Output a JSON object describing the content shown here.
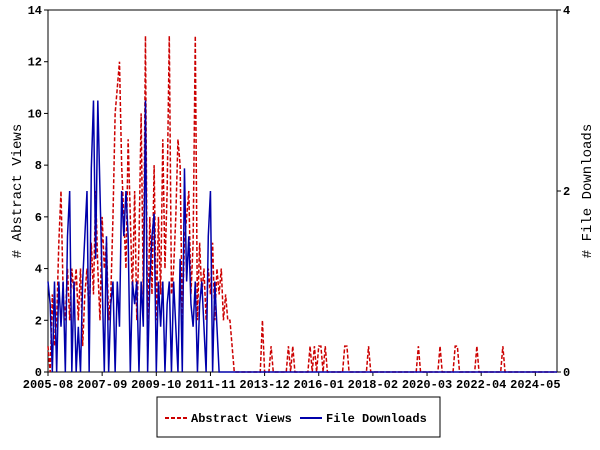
{
  "chart_data": {
    "type": "line",
    "ylabel": "# Abstract Views",
    "y2label": "# File Downloads",
    "x": [
      "2005-08",
      "2005-09",
      "2005-10",
      "2005-11",
      "2005-12",
      "2006-01",
      "2006-02",
      "2006-03",
      "2006-04",
      "2006-05",
      "2006-06",
      "2006-07",
      "2006-08",
      "2006-09",
      "2006-10",
      "2006-11",
      "2006-12",
      "2007-01",
      "2007-02",
      "2007-03",
      "2007-04",
      "2007-05",
      "2007-06",
      "2007-07",
      "2007-08",
      "2007-09",
      "2007-10",
      "2007-11",
      "2007-12",
      "2008-01",
      "2008-02",
      "2008-03",
      "2008-04",
      "2008-05",
      "2008-06",
      "2008-07",
      "2008-08",
      "2008-09",
      "2008-10",
      "2008-11",
      "2008-12",
      "2009-01",
      "2009-02",
      "2009-03",
      "2009-04",
      "2009-05",
      "2009-06",
      "2009-07",
      "2009-08",
      "2009-09",
      "2009-10",
      "2009-11",
      "2009-12",
      "2010-01",
      "2010-02",
      "2010-03",
      "2010-04",
      "2010-05",
      "2010-06",
      "2010-07",
      "2010-08",
      "2010-09",
      "2010-10",
      "2010-11",
      "2010-12",
      "2011-01",
      "2011-02",
      "2011-03",
      "2011-04",
      "2011-05",
      "2011-06",
      "2011-07",
      "2011-08",
      "2011-09",
      "2011-10",
      "2011-11",
      "2011-12",
      "2012-01",
      "2012-02",
      "2012-03",
      "2012-04",
      "2012-05",
      "2012-06",
      "2012-07",
      "2012-08",
      "2012-09",
      "2012-10",
      "2012-11",
      "2012-12",
      "2013-01",
      "2013-02",
      "2013-03",
      "2013-04",
      "2013-05",
      "2013-06",
      "2013-07",
      "2013-08",
      "2013-09",
      "2013-10",
      "2013-11",
      "2013-12",
      "2014-01",
      "2014-02",
      "2014-03",
      "2014-04",
      "2014-05",
      "2014-06",
      "2014-07",
      "2014-08",
      "2014-09",
      "2014-10",
      "2014-11",
      "2014-12",
      "2015-01",
      "2015-02",
      "2015-03",
      "2015-04",
      "2015-05",
      "2015-06",
      "2015-07",
      "2015-08",
      "2015-09",
      "2015-10",
      "2015-11",
      "2015-12",
      "2016-01",
      "2016-02",
      "2016-03",
      "2016-04",
      "2016-05",
      "2016-06",
      "2016-07",
      "2016-08",
      "2016-09",
      "2016-10",
      "2016-11",
      "2016-12",
      "2017-01",
      "2017-02",
      "2017-03",
      "2017-04",
      "2017-05",
      "2017-06",
      "2017-07",
      "2017-08",
      "2017-09",
      "2017-10",
      "2017-11",
      "2017-12",
      "2018-01",
      "2018-02",
      "2018-03",
      "2018-04",
      "2018-05",
      "2018-06",
      "2018-07",
      "2018-08",
      "2018-09",
      "2018-10",
      "2018-11",
      "2018-12",
      "2019-01",
      "2019-02",
      "2019-03",
      "2019-04",
      "2019-05",
      "2019-06",
      "2019-07",
      "2019-08",
      "2019-09",
      "2019-10",
      "2019-11",
      "2019-12",
      "2020-01",
      "2020-02",
      "2020-03",
      "2020-04",
      "2020-05",
      "2020-06",
      "2020-07",
      "2020-08",
      "2020-09",
      "2020-10",
      "2020-11",
      "2020-12",
      "2021-01",
      "2021-02",
      "2021-03",
      "2021-04",
      "2021-05",
      "2021-06",
      "2021-07",
      "2021-08",
      "2021-09",
      "2021-10",
      "2021-11",
      "2021-12",
      "2022-01",
      "2022-02",
      "2022-03",
      "2022-04",
      "2022-05",
      "2022-06",
      "2022-07",
      "2022-08",
      "2022-09",
      "2022-10",
      "2022-11",
      "2022-12",
      "2023-01",
      "2023-02",
      "2023-03",
      "2023-04",
      "2023-05",
      "2023-06",
      "2023-07",
      "2023-08",
      "2023-09",
      "2023-10",
      "2023-11",
      "2023-12",
      "2024-01",
      "2024-02",
      "2024-03",
      "2024-04",
      "2024-05",
      "2024-06",
      "2024-07",
      "2024-08",
      "2024-09",
      "2024-10",
      "2024-11",
      "2024-12",
      "2025-01",
      "2025-02",
      "2025-03"
    ],
    "xlim": [
      "2005-08",
      "2025-03"
    ],
    "xticks": [
      "2005-08",
      "2007-09",
      "2009-10",
      "2011-11",
      "2013-12",
      "2016-01",
      "2018-02",
      "2020-03",
      "2022-04",
      "2024-05"
    ],
    "ylim": [
      0,
      14
    ],
    "yticks": [
      0,
      2,
      4,
      6,
      8,
      10,
      12,
      14
    ],
    "y2lim": [
      0,
      4
    ],
    "y2ticks": [
      0,
      2,
      4
    ],
    "legend": "bottom",
    "series": [
      {
        "name": "Abstract Views",
        "color": "#cc0000",
        "style": "dashed",
        "values": [
          1,
          0,
          3,
          1,
          2,
          5,
          7,
          3,
          2,
          4,
          2,
          4,
          3,
          4,
          2,
          4,
          1,
          3,
          4,
          2,
          5,
          3,
          7,
          4,
          2,
          6,
          4,
          5,
          2,
          3,
          6,
          10,
          11,
          12,
          8,
          6,
          4,
          9,
          6,
          3,
          7,
          2,
          5,
          10,
          3,
          13,
          1,
          6,
          3,
          8,
          2,
          6,
          3,
          9,
          4,
          7,
          13,
          3,
          4,
          6,
          9,
          8,
          2,
          5,
          6,
          7,
          3,
          5,
          13,
          2,
          5,
          3,
          4,
          2,
          4,
          3,
          5,
          2,
          4,
          3,
          4,
          2,
          3,
          2,
          2,
          1,
          0,
          0,
          0,
          0,
          0,
          0,
          0,
          0,
          0,
          0,
          0,
          0,
          0,
          2,
          0,
          0,
          0,
          1,
          0,
          0,
          0,
          0,
          0,
          0,
          0,
          1,
          0,
          1,
          0,
          0,
          0,
          0,
          0,
          0,
          0,
          1,
          0,
          1,
          0,
          1,
          1,
          0,
          1,
          0,
          0,
          0,
          0,
          0,
          0,
          0,
          0,
          1,
          1,
          0,
          0,
          0,
          0,
          0,
          0,
          0,
          0,
          0,
          1,
          0,
          0,
          0,
          0,
          0,
          0,
          0,
          0,
          0,
          0,
          0,
          0,
          0,
          0,
          0,
          0,
          0,
          0,
          0,
          0,
          0,
          0,
          1,
          0,
          0,
          0,
          0,
          0,
          0,
          0,
          0,
          0,
          1,
          0,
          0,
          0,
          0,
          0,
          0,
          1,
          1,
          0,
          0,
          0,
          0,
          0,
          0,
          0,
          0,
          1,
          0,
          0,
          0,
          0,
          0,
          0,
          0,
          0,
          0,
          0,
          0,
          1,
          0,
          0,
          0,
          0,
          0,
          0,
          0,
          0,
          0,
          0,
          0,
          0,
          0,
          0,
          0,
          0,
          0,
          0,
          0,
          0,
          0,
          0,
          0,
          0,
          0
        ]
      },
      {
        "name": "File Downloads",
        "color": "#0000aa",
        "style": "solid",
        "axis": "y2",
        "values": [
          1,
          0.75,
          0,
          1,
          0,
          1,
          0.5,
          1,
          0,
          1.5,
          2,
          0,
          1,
          0,
          0.5,
          0,
          1,
          1.5,
          2,
          0,
          2.25,
          3,
          1.25,
          3,
          2,
          1,
          0,
          1.5,
          0,
          0.75,
          1,
          0,
          1,
          0.5,
          2,
          1.5,
          2,
          1.5,
          0,
          1,
          0.75,
          1,
          0,
          1,
          0.5,
          3,
          0,
          1,
          1.5,
          1.75,
          0,
          1,
          0.5,
          1,
          0,
          0.75,
          1,
          0,
          1,
          0.5,
          0,
          1.25,
          0,
          2.25,
          1,
          1.5,
          0.75,
          0.5,
          1,
          0,
          0.75,
          1,
          0.5,
          0,
          1.5,
          2,
          0,
          1,
          0.5,
          0,
          0,
          0,
          0,
          0,
          0,
          0,
          0,
          0,
          0,
          0,
          0,
          0,
          0,
          0,
          0,
          0,
          0,
          0,
          0,
          0,
          0,
          0,
          0,
          0,
          0,
          0,
          0,
          0,
          0,
          0,
          0,
          0,
          0,
          0,
          0,
          0,
          0,
          0,
          0,
          0,
          0,
          0,
          0,
          0,
          0,
          0,
          0,
          0,
          0,
          0,
          0,
          0,
          0,
          0,
          0,
          0,
          0,
          0,
          0,
          0,
          0,
          0,
          0,
          0,
          0,
          0,
          0,
          0,
          0,
          0,
          0,
          0,
          0,
          0,
          0,
          0,
          0,
          0,
          0,
          0,
          0,
          0,
          0,
          0,
          0,
          0,
          0,
          0,
          0,
          0,
          0,
          0,
          0,
          0,
          0,
          0,
          0,
          0,
          0,
          0,
          0,
          0,
          0,
          0,
          0,
          0,
          0,
          0,
          0,
          0,
          0,
          0,
          0,
          0,
          0,
          0,
          0,
          0,
          0,
          0,
          0,
          0,
          0,
          0,
          0,
          0,
          0,
          0,
          0,
          0,
          0,
          0,
          0,
          0,
          0,
          0,
          0,
          0,
          0,
          0,
          0,
          0,
          0,
          0,
          0,
          0,
          0,
          0,
          0,
          0,
          0,
          0,
          0,
          0,
          0,
          0
        ]
      }
    ]
  }
}
